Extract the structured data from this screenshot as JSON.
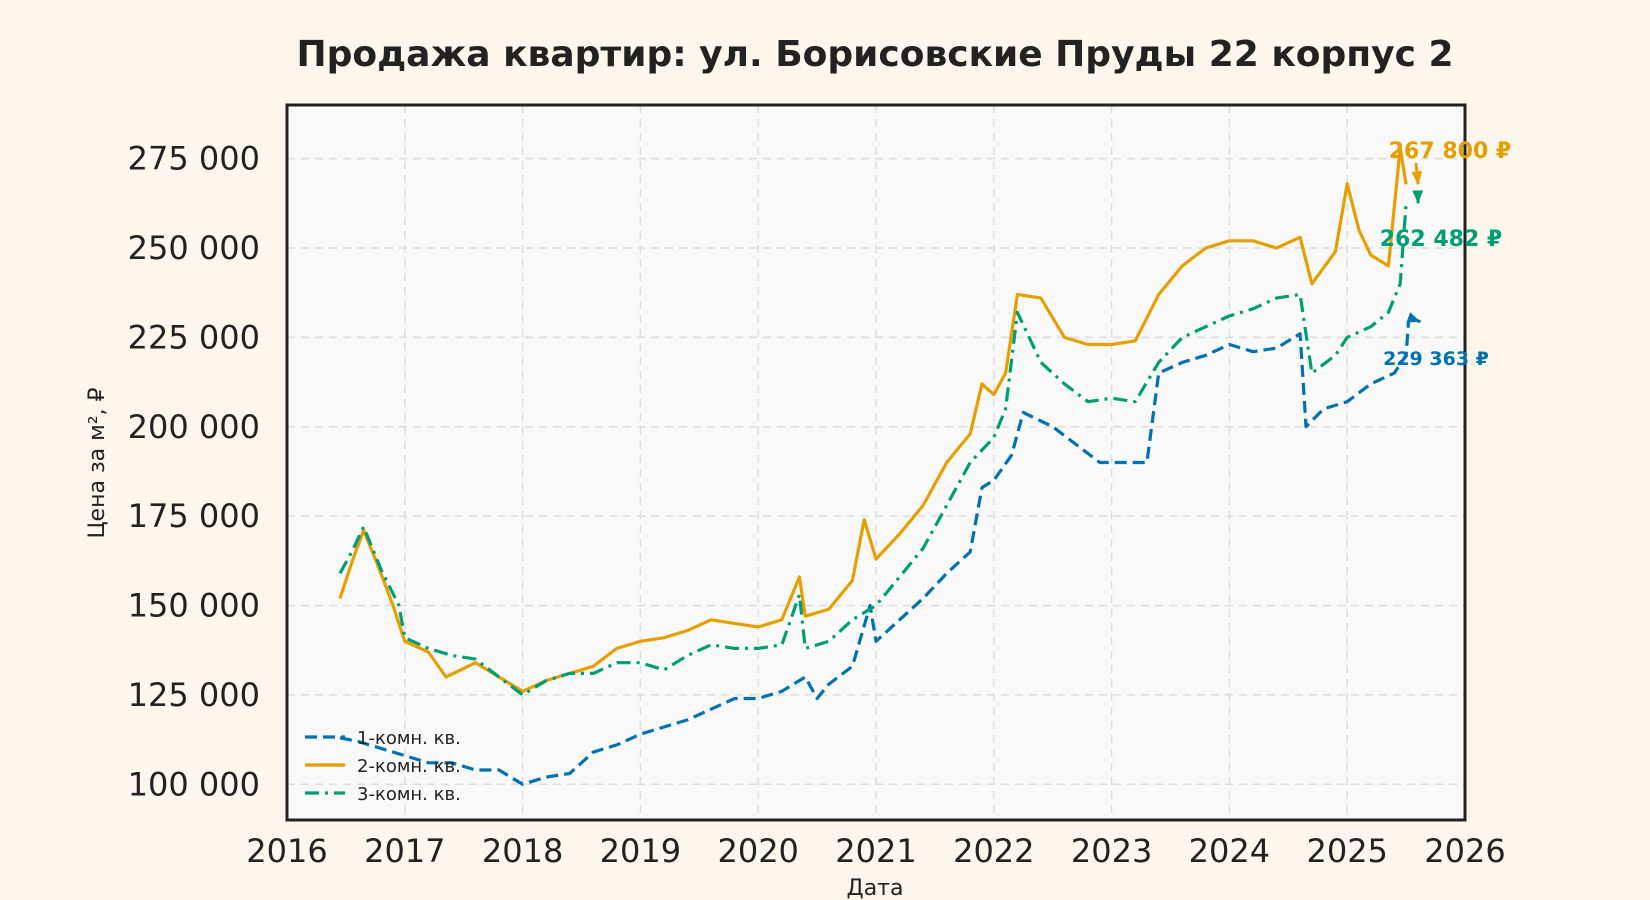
{
  "chart_data": {
    "type": "line",
    "title": "Продажа квартир: ул. Борисовские Пруды 22 корпус 2",
    "xlabel": "Дата",
    "ylabel": "Цена за м², ₽",
    "xlim": [
      2016.0,
      2026.0
    ],
    "ylim": [
      90000,
      290000
    ],
    "x_ticks": [
      "2016",
      "2017",
      "2018",
      "2019",
      "2020",
      "2021",
      "2022",
      "2023",
      "2024",
      "2025",
      "2026"
    ],
    "y_ticks": [
      "100 000",
      "125 000",
      "150 000",
      "175 000",
      "200 000",
      "225 000",
      "250 000",
      "275 000"
    ],
    "y_tick_values": [
      100000,
      125000,
      150000,
      175000,
      200000,
      225000,
      250000,
      275000
    ],
    "grid": true,
    "legend_position": "bottom-left",
    "series": [
      {
        "name": "1-комн. кв.",
        "color": "#0072b2",
        "dash": "dashed",
        "points": [
          [
            2016.45,
            113000
          ],
          [
            2016.6,
            112000
          ],
          [
            2016.8,
            110000
          ],
          [
            2017.0,
            108000
          ],
          [
            2017.2,
            106000
          ],
          [
            2017.4,
            106000
          ],
          [
            2017.6,
            104000
          ],
          [
            2017.8,
            104000
          ],
          [
            2018.0,
            100000
          ],
          [
            2018.2,
            102000
          ],
          [
            2018.4,
            103000
          ],
          [
            2018.6,
            109000
          ],
          [
            2018.8,
            111000
          ],
          [
            2019.0,
            114000
          ],
          [
            2019.2,
            116000
          ],
          [
            2019.4,
            118000
          ],
          [
            2019.6,
            121000
          ],
          [
            2019.8,
            124000
          ],
          [
            2020.0,
            124000
          ],
          [
            2020.2,
            126000
          ],
          [
            2020.4,
            130000
          ],
          [
            2020.5,
            124000
          ],
          [
            2020.6,
            128000
          ],
          [
            2020.8,
            133000
          ],
          [
            2020.95,
            150000
          ],
          [
            2021.0,
            140000
          ],
          [
            2021.2,
            146000
          ],
          [
            2021.4,
            152000
          ],
          [
            2021.6,
            159000
          ],
          [
            2021.8,
            165000
          ],
          [
            2021.9,
            183000
          ],
          [
            2022.0,
            185000
          ],
          [
            2022.15,
            192000
          ],
          [
            2022.25,
            204000
          ],
          [
            2022.5,
            200000
          ],
          [
            2022.7,
            195000
          ],
          [
            2022.9,
            190000
          ],
          [
            2023.1,
            190000
          ],
          [
            2023.3,
            190000
          ],
          [
            2023.4,
            215000
          ],
          [
            2023.6,
            218000
          ],
          [
            2023.8,
            220000
          ],
          [
            2024.0,
            223000
          ],
          [
            2024.2,
            221000
          ],
          [
            2024.4,
            222000
          ],
          [
            2024.6,
            226000
          ],
          [
            2024.65,
            200000
          ],
          [
            2024.8,
            205000
          ],
          [
            2025.0,
            207000
          ],
          [
            2025.2,
            212000
          ],
          [
            2025.4,
            215000
          ],
          [
            2025.5,
            220000
          ],
          [
            2025.52,
            229363
          ]
        ]
      },
      {
        "name": "2-комн. кв.",
        "color": "#e69f00",
        "dash": "solid",
        "points": [
          [
            2016.45,
            152000
          ],
          [
            2016.55,
            162000
          ],
          [
            2016.65,
            171000
          ],
          [
            2016.75,
            163000
          ],
          [
            2016.9,
            150000
          ],
          [
            2017.0,
            140000
          ],
          [
            2017.2,
            137000
          ],
          [
            2017.35,
            130000
          ],
          [
            2017.6,
            134000
          ],
          [
            2017.8,
            130000
          ],
          [
            2018.0,
            126000
          ],
          [
            2018.2,
            129000
          ],
          [
            2018.4,
            131000
          ],
          [
            2018.6,
            133000
          ],
          [
            2018.8,
            138000
          ],
          [
            2019.0,
            140000
          ],
          [
            2019.2,
            141000
          ],
          [
            2019.4,
            143000
          ],
          [
            2019.6,
            146000
          ],
          [
            2019.8,
            145000
          ],
          [
            2020.0,
            144000
          ],
          [
            2020.2,
            146000
          ],
          [
            2020.35,
            158000
          ],
          [
            2020.4,
            147000
          ],
          [
            2020.6,
            149000
          ],
          [
            2020.8,
            157000
          ],
          [
            2020.9,
            174000
          ],
          [
            2021.0,
            163000
          ],
          [
            2021.2,
            170000
          ],
          [
            2021.4,
            178000
          ],
          [
            2021.6,
            190000
          ],
          [
            2021.8,
            198000
          ],
          [
            2021.9,
            212000
          ],
          [
            2022.0,
            209000
          ],
          [
            2022.1,
            215000
          ],
          [
            2022.2,
            237000
          ],
          [
            2022.4,
            236000
          ],
          [
            2022.6,
            225000
          ],
          [
            2022.8,
            223000
          ],
          [
            2023.0,
            223000
          ],
          [
            2023.2,
            224000
          ],
          [
            2023.4,
            237000
          ],
          [
            2023.6,
            245000
          ],
          [
            2023.8,
            250000
          ],
          [
            2024.0,
            252000
          ],
          [
            2024.2,
            252000
          ],
          [
            2024.4,
            250000
          ],
          [
            2024.6,
            253000
          ],
          [
            2024.7,
            240000
          ],
          [
            2024.9,
            249000
          ],
          [
            2025.0,
            268000
          ],
          [
            2025.1,
            255000
          ],
          [
            2025.2,
            248000
          ],
          [
            2025.35,
            245000
          ],
          [
            2025.45,
            278000
          ],
          [
            2025.5,
            267800
          ]
        ]
      },
      {
        "name": "3-комн. кв.",
        "color": "#009e73",
        "dash": "dashdot",
        "points": [
          [
            2016.45,
            159000
          ],
          [
            2016.55,
            165000
          ],
          [
            2016.65,
            172000
          ],
          [
            2016.8,
            160000
          ],
          [
            2016.95,
            150000
          ],
          [
            2017.0,
            141000
          ],
          [
            2017.2,
            138000
          ],
          [
            2017.4,
            136000
          ],
          [
            2017.6,
            135000
          ],
          [
            2017.8,
            130000
          ],
          [
            2018.0,
            125000
          ],
          [
            2018.2,
            129000
          ],
          [
            2018.4,
            131000
          ],
          [
            2018.6,
            131000
          ],
          [
            2018.8,
            134000
          ],
          [
            2019.0,
            134000
          ],
          [
            2019.2,
            132000
          ],
          [
            2019.4,
            136000
          ],
          [
            2019.6,
            139000
          ],
          [
            2019.8,
            138000
          ],
          [
            2020.0,
            138000
          ],
          [
            2020.2,
            139000
          ],
          [
            2020.35,
            153000
          ],
          [
            2020.4,
            138000
          ],
          [
            2020.6,
            140000
          ],
          [
            2020.8,
            146000
          ],
          [
            2021.0,
            150000
          ],
          [
            2021.2,
            158000
          ],
          [
            2021.4,
            166000
          ],
          [
            2021.6,
            178000
          ],
          [
            2021.8,
            190000
          ],
          [
            2022.0,
            197000
          ],
          [
            2022.1,
            205000
          ],
          [
            2022.2,
            232000
          ],
          [
            2022.4,
            218000
          ],
          [
            2022.6,
            212000
          ],
          [
            2022.8,
            207000
          ],
          [
            2023.0,
            208000
          ],
          [
            2023.2,
            207000
          ],
          [
            2023.4,
            218000
          ],
          [
            2023.6,
            225000
          ],
          [
            2023.8,
            228000
          ],
          [
            2024.0,
            231000
          ],
          [
            2024.2,
            233000
          ],
          [
            2024.4,
            236000
          ],
          [
            2024.6,
            237000
          ],
          [
            2024.7,
            215000
          ],
          [
            2024.9,
            220000
          ],
          [
            2025.0,
            225000
          ],
          [
            2025.2,
            228000
          ],
          [
            2025.35,
            232000
          ],
          [
            2025.45,
            240000
          ],
          [
            2025.5,
            262482
          ]
        ]
      }
    ],
    "annotations": [
      {
        "text": "267 800 ₽",
        "color": "#e69f00",
        "series": "2-комн. кв.",
        "value": 267800
      },
      {
        "text": "262 482 ₽",
        "color": "#009e73",
        "series": "3-комн. кв.",
        "value": 262482
      },
      {
        "text": "229 363 ₽",
        "color": "#0072b2",
        "series": "1-комн. кв.",
        "value": 229363
      }
    ]
  }
}
